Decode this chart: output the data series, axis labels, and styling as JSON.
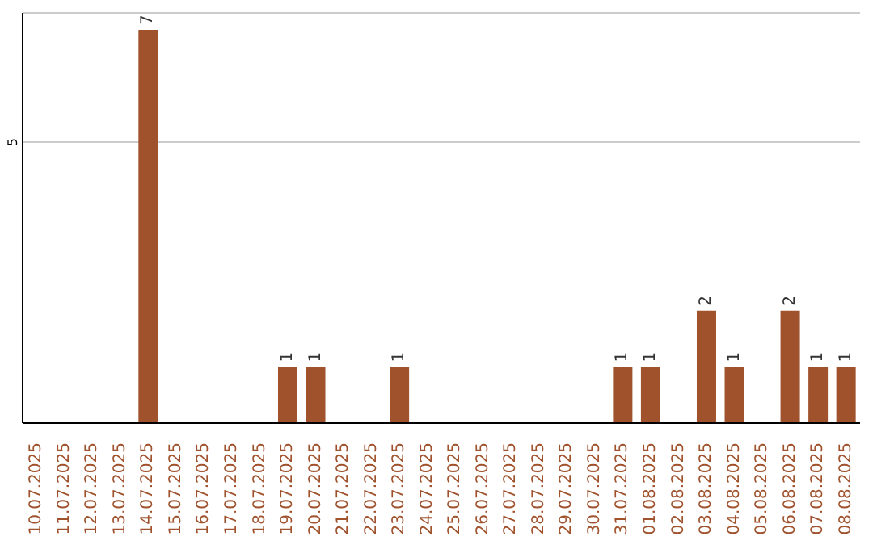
{
  "chart_data": {
    "type": "bar",
    "categories": [
      "10.07.2025",
      "11.07.2025",
      "12.07.2025",
      "13.07.2025",
      "14.07.2025",
      "15.07.2025",
      "16.07.2025",
      "17.07.2025",
      "18.07.2025",
      "19.07.2025",
      "20.07.2025",
      "21.07.2025",
      "22.07.2025",
      "23.07.2025",
      "24.07.2025",
      "25.07.2025",
      "26.07.2025",
      "27.07.2025",
      "28.07.2025",
      "29.07.2025",
      "30.07.2025",
      "31.07.2025",
      "01.08.2025",
      "02.08.2025",
      "03.08.2025",
      "04.08.2025",
      "05.08.2025",
      "06.08.2025",
      "07.08.2025",
      "08.08.2025"
    ],
    "values": [
      0,
      0,
      0,
      0,
      7,
      0,
      0,
      0,
      0,
      1,
      1,
      0,
      0,
      1,
      0,
      0,
      0,
      0,
      0,
      0,
      0,
      1,
      1,
      0,
      2,
      1,
      0,
      2,
      1,
      1
    ],
    "value_labels": [
      null,
      null,
      null,
      null,
      "7",
      null,
      null,
      null,
      null,
      "1",
      "1",
      null,
      null,
      "1",
      null,
      null,
      null,
      null,
      null,
      null,
      null,
      "1",
      "1",
      null,
      "2",
      "1",
      null,
      "2",
      "1",
      "1"
    ],
    "color": "#a0522d",
    "ylim": [
      0,
      7.3
    ],
    "yticks": [
      5
    ],
    "grid": "y"
  }
}
